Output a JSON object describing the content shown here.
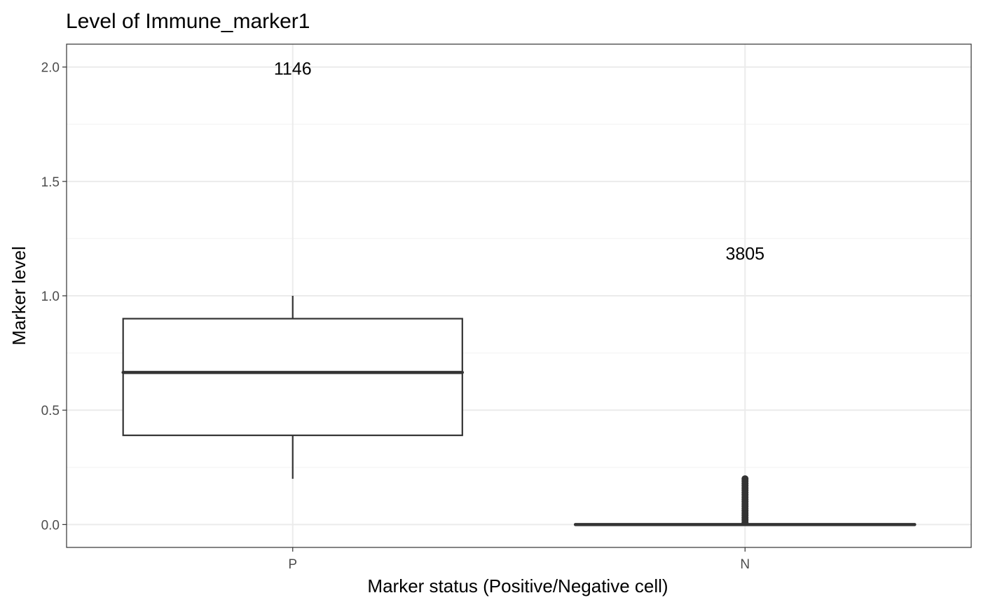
{
  "chart_data": {
    "type": "box",
    "title": "Level of Immune_marker1",
    "xlabel": "Marker status (Positive/Negative cell)",
    "ylabel": "Marker level",
    "categories": [
      "P",
      "N"
    ],
    "ylim": [
      -0.1,
      2.1
    ],
    "yticks": [
      0.0,
      0.5,
      1.0,
      1.5,
      2.0
    ],
    "ytick_labels": [
      "0.0",
      "0.5",
      "1.0",
      "1.5",
      "2.0"
    ],
    "grid": true,
    "boxes": [
      {
        "category": "P",
        "whisker_low": 0.2,
        "q1": 0.39,
        "median": 0.665,
        "q3": 0.9,
        "whisker_high": 1.0,
        "outliers": []
      },
      {
        "category": "N",
        "whisker_low": 0.0,
        "q1": 0.0,
        "median": 0.0,
        "q3": 0.0,
        "whisker_high": 0.0,
        "outliers": [
          0.01,
          0.02,
          0.03,
          0.04,
          0.05,
          0.06,
          0.07,
          0.08,
          0.09,
          0.1,
          0.11,
          0.12,
          0.13,
          0.14,
          0.15,
          0.16,
          0.17,
          0.18,
          0.19,
          0.2
        ]
      }
    ],
    "count_labels": [
      {
        "category": "P",
        "text": "1146",
        "y": 1.995
      },
      {
        "category": "N",
        "text": "3805",
        "y": 1.185
      }
    ],
    "colors": {
      "box_line": "#333333",
      "grid_major": "#ebebeb",
      "grid_minor": "#f4f4f4",
      "panel_border": "#333333"
    }
  }
}
